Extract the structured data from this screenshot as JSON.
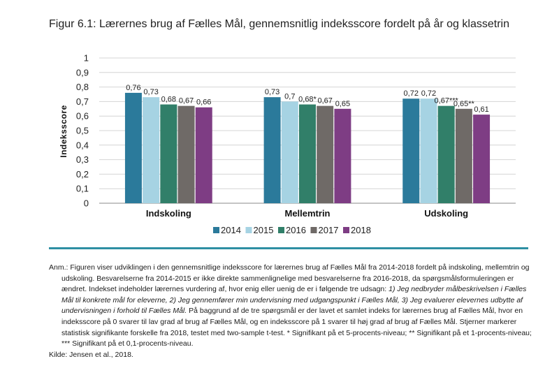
{
  "title": "Figur 6.1: Lærernes brug af Fælles Mål, gennemsnitlig indeksscore fordelt på år og klassetrin",
  "chart_data": {
    "type": "bar",
    "categories": [
      "Indskoling",
      "Mellemtrin",
      "Udskoling"
    ],
    "ylabel": "Indeksscore",
    "xlabel": "",
    "ylim": [
      0,
      1
    ],
    "yticks": [
      "0",
      "0,1",
      "0,2",
      "0,3",
      "0,4",
      "0,5",
      "0,6",
      "0,7",
      "0,8",
      "0,9",
      "1"
    ],
    "grid": true,
    "legend_position": "bottom",
    "series": [
      {
        "name": "2014",
        "color": "#2b7a9b",
        "values": [
          0.76,
          0.73,
          0.72
        ],
        "labels": [
          "0,76",
          "0,73",
          "0,72"
        ]
      },
      {
        "name": "2015",
        "color": "#a6d3e3",
        "values": [
          0.73,
          0.7,
          0.72
        ],
        "labels": [
          "0,73",
          "0,7",
          "0,72"
        ]
      },
      {
        "name": "2016",
        "color": "#317f69",
        "values": [
          0.68,
          0.68,
          0.67
        ],
        "labels": [
          "0,68",
          "0,68*",
          "0,67***"
        ]
      },
      {
        "name": "2017",
        "color": "#6f6a67",
        "values": [
          0.67,
          0.67,
          0.65
        ],
        "labels": [
          "0,67",
          "0,67",
          "0,65**"
        ]
      },
      {
        "name": "2018",
        "color": "#7e3d84",
        "values": [
          0.66,
          0.65,
          0.61
        ],
        "labels": [
          "0,66",
          "0,65",
          "0,61"
        ]
      }
    ]
  },
  "note": {
    "p1": "Anm.: Figuren viser udviklingen i den gennemsnitlige indeksscore for lærernes brug af Fælles Mål fra 2014-2018 fordelt på indskoling, mellemtrin og udskoling. Besvarelserne fra 2014-2015 er ikke direkte sammenlignelige med besvarelserne fra 2016-2018, da spørgsmålsformuleringen er ændret. Indekset indeholder lærernes vurdering af, hvor enig eller uenig de er i følgende tre udsagn: ",
    "p1_italic": "1) Jeg nedbryder målbeskrivelsen i Fælles Mål til konkrete mål for eleverne, 2) Jeg gennemfører min undervisning med udgangspunkt i Fælles Mål, 3) Jeg evaluerer elevernes udbytte af undervisningen i forhold til Fælles Mål.",
    "p1_rest": " På baggrund af de tre spørgsmål er der lavet et samlet indeks for lærernes brug af Fælles Mål, hvor en indeksscore på 0 svarer til lav grad af brug af Fælles Mål, og en indeksscore på 1 svarer til høj grad af brug af Fælles Mål. Stjerner markerer statistisk signifikante forskelle fra 2018, testet med two-sample t-test. * Signifikant på et 5-procents-niveau; ** Signifikant på et 1-procents-niveau; *** Signifikant på et 0,1-procents-niveau.",
    "source": "Kilde: Jensen et al., 2018."
  }
}
